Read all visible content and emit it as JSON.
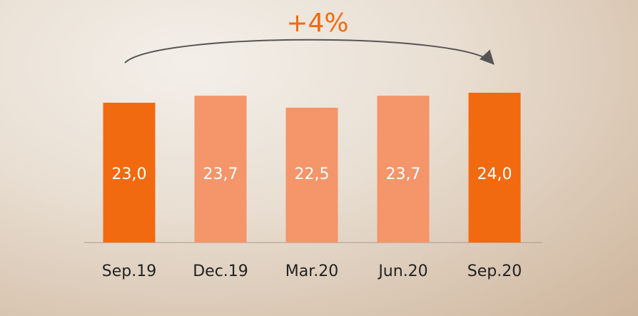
{
  "chart_data": {
    "type": "bar",
    "annotation": "+4%",
    "categories": [
      "Sep.19",
      "Dec.19",
      "Mar.20",
      "Jun.20",
      "Sep.20"
    ],
    "values": [
      23.0,
      23.7,
      22.5,
      23.7,
      24.0
    ],
    "value_labels": [
      "23,0",
      "23,7",
      "22,5",
      "23,7",
      "24,0"
    ],
    "colors": [
      "#f26a0f",
      "#f4956a",
      "#f4956a",
      "#f4956a",
      "#f26a0f"
    ],
    "ylim": [
      9,
      25
    ]
  }
}
